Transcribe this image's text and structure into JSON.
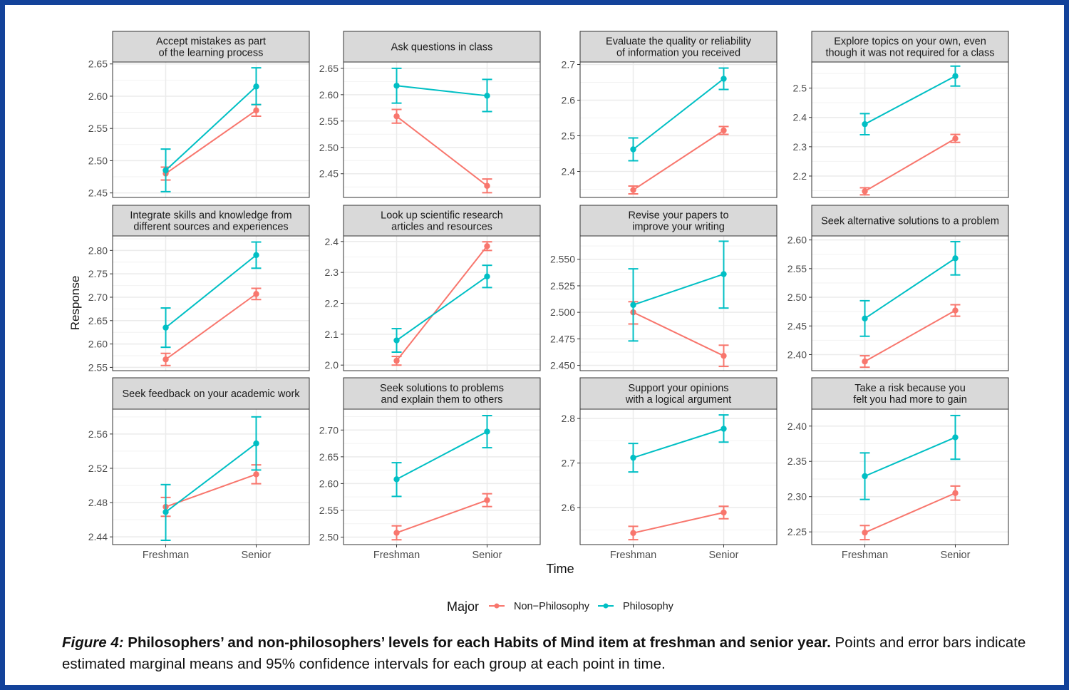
{
  "chart_data": {
    "type": "line",
    "layout": "facet-grid 3x4",
    "x_categories": [
      "Freshman",
      "Senior"
    ],
    "xlabel": "Time",
    "ylabel": "Response",
    "legend": {
      "title": "Major",
      "placement": "bottom",
      "entries": [
        {
          "name": "Non−Philosophy",
          "color": "#f8766d"
        },
        {
          "name": "Philosophy",
          "color": "#00bfc4"
        }
      ]
    },
    "error_bars": "95% confidence interval",
    "grid": true,
    "panels": [
      {
        "title": [
          "Accept mistakes as part",
          "of the learning process"
        ],
        "ylim": [
          2.443,
          2.653
        ],
        "yticks": [
          "2.45",
          "2.50",
          "2.55",
          "2.60",
          "2.65"
        ],
        "series": [
          {
            "name": "Non-Philosophy",
            "values": [
              2.48,
              2.578
            ],
            "lower": [
              2.47,
              2.569
            ],
            "upper": [
              2.49,
              2.587
            ]
          },
          {
            "name": "Philosophy",
            "values": [
              2.485,
              2.615
            ],
            "lower": [
              2.452,
              2.587
            ],
            "upper": [
              2.518,
              2.644
            ]
          }
        ]
      },
      {
        "title": [
          "Ask questions in class"
        ],
        "ylim": [
          2.405,
          2.662
        ],
        "yticks": [
          "2.45",
          "2.50",
          "2.55",
          "2.60",
          "2.65"
        ],
        "series": [
          {
            "name": "Non-Philosophy",
            "values": [
              2.559,
              2.427
            ],
            "lower": [
              2.546,
              2.414
            ],
            "upper": [
              2.572,
              2.44
            ]
          },
          {
            "name": "Philosophy",
            "values": [
              2.617,
              2.598
            ],
            "lower": [
              2.584,
              2.568
            ],
            "upper": [
              2.65,
              2.629
            ]
          }
        ]
      },
      {
        "title": [
          "Evaluate the quality or reliability",
          "of information you received"
        ],
        "ylim": [
          2.327,
          2.707
        ],
        "yticks": [
          "2.4",
          "2.5",
          "2.6",
          "2.7"
        ],
        "series": [
          {
            "name": "Non-Philosophy",
            "values": [
              2.348,
              2.515
            ],
            "lower": [
              2.337,
              2.504
            ],
            "upper": [
              2.359,
              2.526
            ]
          },
          {
            "name": "Philosophy",
            "values": [
              2.462,
              2.66
            ],
            "lower": [
              2.43,
              2.63
            ],
            "upper": [
              2.494,
              2.69
            ]
          }
        ]
      },
      {
        "title": [
          "Explore topics on your own, even",
          "though it was not required for a class"
        ],
        "ylim": [
          2.127,
          2.589
        ],
        "yticks": [
          "2.2",
          "2.3",
          "2.4",
          "2.5"
        ],
        "series": [
          {
            "name": "Non-Philosophy",
            "values": [
              2.148,
              2.328
            ],
            "lower": [
              2.136,
              2.315
            ],
            "upper": [
              2.16,
              2.342
            ]
          },
          {
            "name": "Philosophy",
            "values": [
              2.377,
              2.541
            ],
            "lower": [
              2.341,
              2.507
            ],
            "upper": [
              2.413,
              2.575
            ]
          }
        ]
      },
      {
        "title": [
          "Integrate skills and knowledge from",
          "different sources and experiences"
        ],
        "ylim": [
          2.543,
          2.831
        ],
        "yticks": [
          "2.55",
          "2.60",
          "2.65",
          "2.70",
          "2.75",
          "2.80"
        ],
        "series": [
          {
            "name": "Non-Philosophy",
            "values": [
              2.567,
              2.707
            ],
            "lower": [
              2.554,
              2.695
            ],
            "upper": [
              2.58,
              2.719
            ]
          },
          {
            "name": "Philosophy",
            "values": [
              2.635,
              2.79
            ],
            "lower": [
              2.593,
              2.762
            ],
            "upper": [
              2.677,
              2.818
            ]
          }
        ]
      },
      {
        "title": [
          "Look up scientific research",
          "articles and resources"
        ],
        "ylim": [
          1.982,
          2.418
        ],
        "yticks": [
          "2.0",
          "2.1",
          "2.2",
          "2.3",
          "2.4"
        ],
        "series": [
          {
            "name": "Non-Philosophy",
            "values": [
              2.014,
              2.385
            ],
            "lower": [
              2.0,
              2.371
            ],
            "upper": [
              2.028,
              2.399
            ]
          },
          {
            "name": "Philosophy",
            "values": [
              2.08,
              2.287
            ],
            "lower": [
              2.042,
              2.251
            ],
            "upper": [
              2.118,
              2.323
            ]
          }
        ]
      },
      {
        "title": [
          "Revise your papers to",
          "improve your writing"
        ],
        "ylim": [
          2.445,
          2.572
        ],
        "yticks": [
          "2.450",
          "2.475",
          "2.500",
          "2.525",
          "2.550"
        ],
        "series": [
          {
            "name": "Non-Philosophy",
            "values": [
              2.5,
              2.459
            ],
            "lower": [
              2.489,
              2.449
            ],
            "upper": [
              2.51,
              2.469
            ]
          },
          {
            "name": "Philosophy",
            "values": [
              2.507,
              2.536
            ],
            "lower": [
              2.473,
              2.504
            ],
            "upper": [
              2.541,
              2.567
            ]
          }
        ]
      },
      {
        "title": [
          "Seek alternative solutions to a problem"
        ],
        "ylim": [
          2.372,
          2.607
        ],
        "yticks": [
          "2.40",
          "2.45",
          "2.50",
          "2.55",
          "2.60"
        ],
        "series": [
          {
            "name": "Non-Philosophy",
            "values": [
              2.388,
              2.477
            ],
            "lower": [
              2.378,
              2.467
            ],
            "upper": [
              2.398,
              2.487
            ]
          },
          {
            "name": "Philosophy",
            "values": [
              2.463,
              2.568
            ],
            "lower": [
              2.432,
              2.539
            ],
            "upper": [
              2.494,
              2.597
            ]
          }
        ]
      },
      {
        "title": [
          "Seek feedback on your academic work"
        ],
        "ylim": [
          2.431,
          2.589
        ],
        "yticks": [
          "2.44",
          "2.48",
          "2.52",
          "2.56"
        ],
        "series": [
          {
            "name": "Non-Philosophy",
            "values": [
              2.475,
              2.513
            ],
            "lower": [
              2.464,
              2.502
            ],
            "upper": [
              2.486,
              2.524
            ]
          },
          {
            "name": "Philosophy",
            "values": [
              2.469,
              2.549
            ],
            "lower": [
              2.436,
              2.518
            ],
            "upper": [
              2.501,
              2.58
            ]
          }
        ]
      },
      {
        "title": [
          "Seek solutions to problems",
          "and explain them to others"
        ],
        "ylim": [
          2.486,
          2.739
        ],
        "yticks": [
          "2.50",
          "2.55",
          "2.60",
          "2.65",
          "2.70"
        ],
        "series": [
          {
            "name": "Non-Philosophy",
            "values": [
              2.508,
              2.569
            ],
            "lower": [
              2.495,
              2.557
            ],
            "upper": [
              2.521,
              2.581
            ]
          },
          {
            "name": "Philosophy",
            "values": [
              2.608,
              2.697
            ],
            "lower": [
              2.576,
              2.667
            ],
            "upper": [
              2.639,
              2.727
            ]
          }
        ]
      },
      {
        "title": [
          "Support your opinions",
          "with a logical argument"
        ],
        "ylim": [
          2.517,
          2.821
        ],
        "yticks": [
          "2.6",
          "2.7",
          "2.8"
        ],
        "series": [
          {
            "name": "Non-Philosophy",
            "values": [
              2.543,
              2.589
            ],
            "lower": [
              2.528,
              2.575
            ],
            "upper": [
              2.558,
              2.603
            ]
          },
          {
            "name": "Philosophy",
            "values": [
              2.712,
              2.777
            ],
            "lower": [
              2.68,
              2.747
            ],
            "upper": [
              2.744,
              2.808
            ]
          }
        ]
      },
      {
        "title": [
          "Take a risk because you",
          "felt you had more to gain"
        ],
        "ylim": [
          2.232,
          2.424
        ],
        "yticks": [
          "2.25",
          "2.30",
          "2.35",
          "2.40"
        ],
        "series": [
          {
            "name": "Non-Philosophy",
            "values": [
              2.249,
              2.305
            ],
            "lower": [
              2.239,
              2.295
            ],
            "upper": [
              2.259,
              2.315
            ]
          },
          {
            "name": "Philosophy",
            "values": [
              2.329,
              2.384
            ],
            "lower": [
              2.296,
              2.353
            ],
            "upper": [
              2.362,
              2.415
            ]
          }
        ]
      }
    ]
  },
  "caption": {
    "label": "Figure 4:",
    "title": "Philosophers’ and non-philosophers’ levels for each Habits of Mind item at freshman and senior year.",
    "body": "Points and error bars indicate estimated marginal means and 95% confidence intervals for each group at each point in time."
  }
}
